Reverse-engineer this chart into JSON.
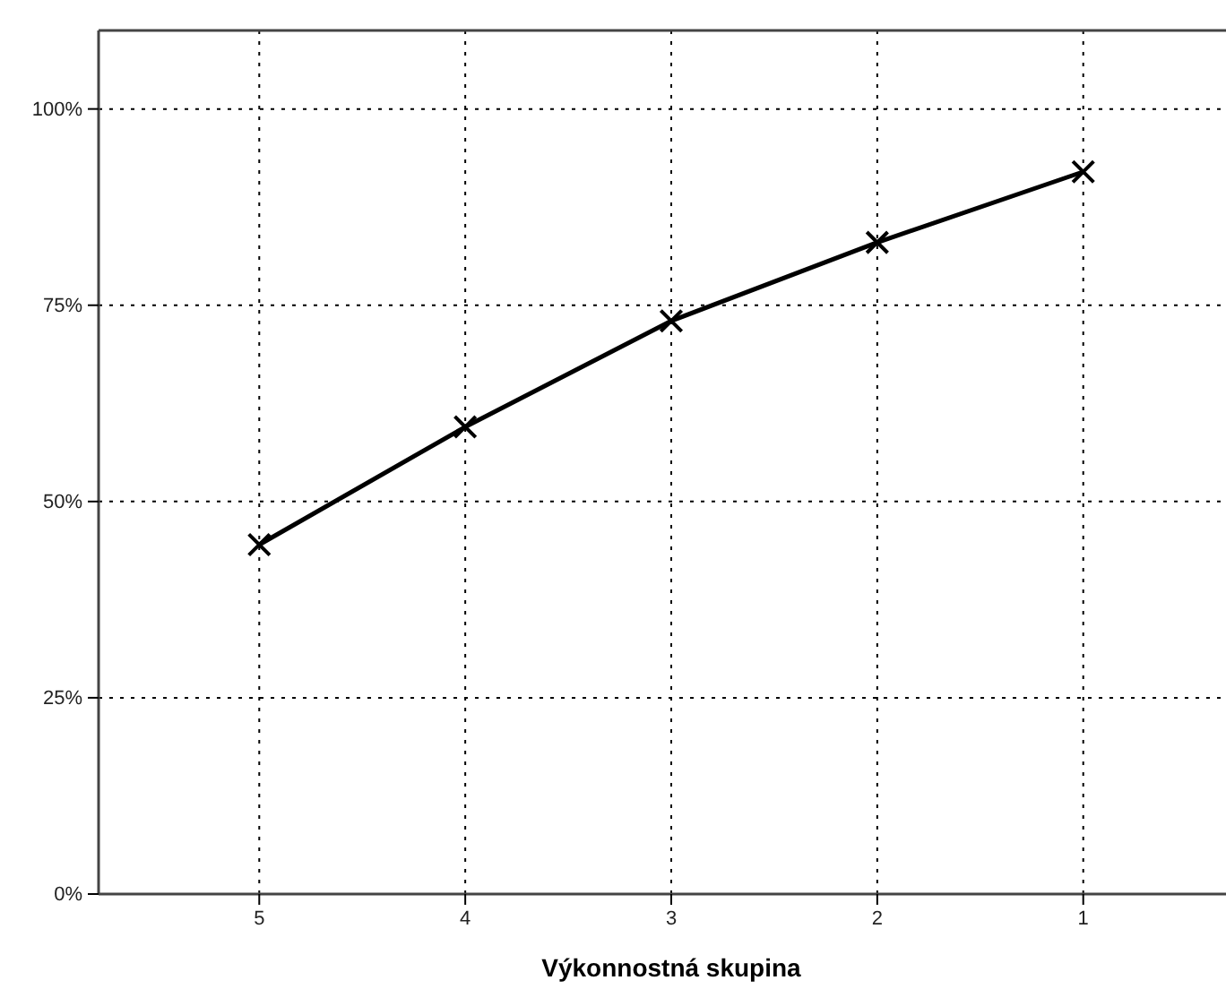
{
  "chart_data": {
    "type": "line",
    "xlabel": "Výkonnostná skupina",
    "categories": [
      "5",
      "4",
      "3",
      "2",
      "1"
    ],
    "series": [
      {
        "color": "#000000",
        "values": [
          44.5,
          59.5,
          73,
          83,
          92
        ]
      }
    ],
    "ylim": [
      0,
      110
    ],
    "yticks": [
      {
        "value": 0,
        "label": "0%"
      },
      {
        "value": 25,
        "label": "25%"
      },
      {
        "value": 50,
        "label": "50%"
      },
      {
        "value": 75,
        "label": "75%"
      },
      {
        "value": 100,
        "label": "100%"
      }
    ],
    "grid": true,
    "marker": "cross",
    "line_style": "solid"
  }
}
